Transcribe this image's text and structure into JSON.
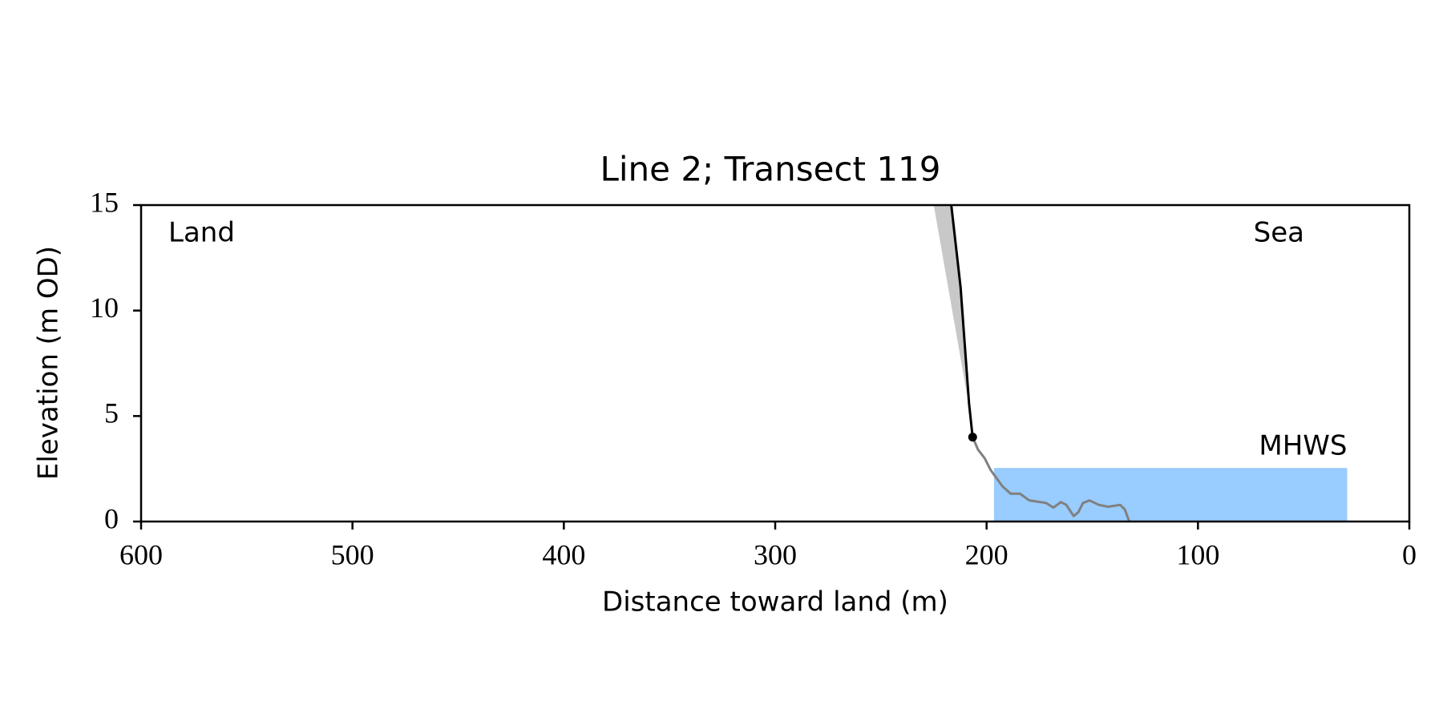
{
  "chart_data": {
    "type": "line",
    "title": "Line 2; Transect 119",
    "xlabel": "Distance toward land (m)",
    "ylabel": "Elevation (m OD)",
    "land_label": "Land",
    "sea_label": "Sea",
    "xlim": [
      600,
      0
    ],
    "xticks": [
      600,
      500,
      400,
      300,
      200,
      100,
      0
    ],
    "ylim": [
      0,
      15
    ],
    "yticks": [
      0,
      5,
      10,
      15
    ],
    "grid": false,
    "band": {
      "label": "MHWS",
      "color": "#99ccff",
      "label_color": "#6699cc",
      "xlim": [
        196.5,
        29.4
      ],
      "ylim": [
        0,
        2.54
      ]
    },
    "shading": {
      "color": "#c8c8c8",
      "x": [
        225,
        216.7,
        212.3,
        208.3,
        207.5
      ],
      "values": [
        15,
        15,
        11.1,
        5.6,
        5.0
      ]
    },
    "series": [
      {
        "color": "#808080",
        "x": [
          206.6,
          204.0,
          200.9,
          198.2,
          195.6,
          192.5,
          188.6,
          184.2,
          179.8,
          171.9,
          168.4,
          164.9,
          162.3,
          158.8,
          156.6,
          154.4,
          151.3,
          146.9,
          142.5,
          136.8,
          134.6,
          132.5
        ],
        "values": [
          4.0,
          3.4,
          3.0,
          2.46,
          2.1,
          1.67,
          1.32,
          1.32,
          1.0,
          0.88,
          0.66,
          0.92,
          0.79,
          0.26,
          0.44,
          0.88,
          1.0,
          0.79,
          0.7,
          0.79,
          0.57,
          0
        ]
      },
      {
        "color": "#000000",
        "x": [
          216.7,
          212.3,
          208.3,
          206.6
        ],
        "values": [
          15,
          11.1,
          5.6,
          4.0
        ]
      }
    ],
    "marker": {
      "x": 206.6,
      "y": 4.0,
      "color": "#000000"
    }
  }
}
